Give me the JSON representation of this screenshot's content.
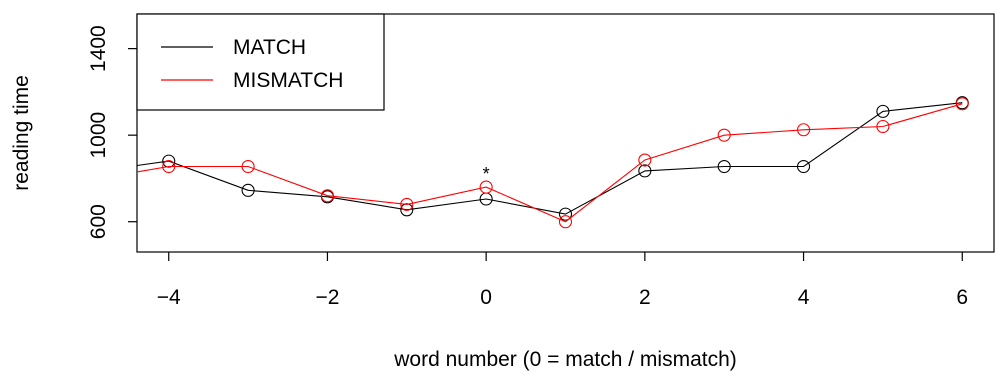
{
  "chart_data": {
    "type": "line",
    "xlabel": "word number (0 = match / mismatch)",
    "ylabel": "reading time",
    "xlim": [
      -4.4,
      6.4
    ],
    "ylim": [
      460,
      1560
    ],
    "xticks": [
      -4,
      -2,
      0,
      2,
      4,
      6
    ],
    "xtick_labels": [
      "−4",
      "−2",
      "0",
      "2",
      "4",
      "6"
    ],
    "yticks": [
      600,
      1000,
      1400
    ],
    "ytick_labels": [
      "600",
      "1000",
      "1400"
    ],
    "grid": false,
    "legend_position": "top-left",
    "x": [
      -4,
      -3,
      -2,
      -1,
      0,
      1,
      2,
      3,
      4,
      5,
      6
    ],
    "series": [
      {
        "name": "MATCH",
        "color": "#000000",
        "values": [
          880,
          745,
          715,
          655,
          705,
          635,
          835,
          855,
          855,
          1110,
          1150
        ],
        "start_value": 860
      },
      {
        "name": "MISMATCH",
        "color": "#ff0000",
        "values": [
          855,
          855,
          720,
          680,
          760,
          600,
          885,
          1000,
          1025,
          1040,
          1145
        ],
        "start_value": 830
      }
    ],
    "annotations": [
      {
        "x": 0,
        "y": 830,
        "text": "*"
      }
    ]
  }
}
